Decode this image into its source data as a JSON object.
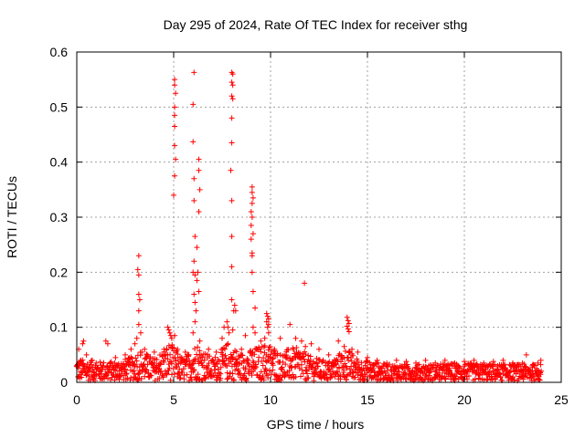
{
  "chart_data": {
    "type": "scatter",
    "title": "Day 295 of 2024, Rate Of TEC Index for receiver sthg",
    "xlabel": "GPS time / hours",
    "ylabel": "ROTI / TECUs",
    "xlim": [
      0,
      25
    ],
    "ylim": [
      0,
      0.6
    ],
    "xticks": [
      0,
      5,
      10,
      15,
      20,
      25
    ],
    "xtick_labels": [
      "0",
      "5",
      "10",
      "15",
      "20",
      "25"
    ],
    "yticks": [
      0,
      0.1,
      0.2,
      0.3,
      0.4,
      0.5,
      0.6
    ],
    "ytick_labels": [
      "0",
      "0.1",
      "0.2",
      "0.3",
      "0.4",
      "0.5",
      "0.6"
    ],
    "grid": true,
    "marker": "+",
    "series": [
      {
        "name": "ROTI",
        "color": "#ff0000",
        "points": [
          [
            0.05,
            0.03
          ],
          [
            0.1,
            0.06
          ],
          [
            0.2,
            0.04
          ],
          [
            0.3,
            0.07
          ],
          [
            0.35,
            0.075
          ],
          [
            0.5,
            0.05
          ],
          [
            0.8,
            0.04
          ],
          [
            1.0,
            0.035
          ],
          [
            1.5,
            0.075
          ],
          [
            1.6,
            0.07
          ],
          [
            2.0,
            0.045
          ],
          [
            2.5,
            0.05
          ],
          [
            2.8,
            0.06
          ],
          [
            3.0,
            0.07
          ],
          [
            3.1,
            0.08
          ],
          [
            3.2,
            0.23
          ],
          [
            3.15,
            0.205
          ],
          [
            3.2,
            0.195
          ],
          [
            3.2,
            0.16
          ],
          [
            3.25,
            0.15
          ],
          [
            3.2,
            0.13
          ],
          [
            3.2,
            0.105
          ],
          [
            3.3,
            0.09
          ],
          [
            3.5,
            0.06
          ],
          [
            4.0,
            0.055
          ],
          [
            4.5,
            0.06
          ],
          [
            4.7,
            0.1
          ],
          [
            4.75,
            0.095
          ],
          [
            4.8,
            0.09
          ],
          [
            4.85,
            0.085
          ],
          [
            4.9,
            0.08
          ],
          [
            5.05,
            0.55
          ],
          [
            5.05,
            0.54
          ],
          [
            5.1,
            0.525
          ],
          [
            5.05,
            0.5
          ],
          [
            5.05,
            0.485
          ],
          [
            5.05,
            0.465
          ],
          [
            5.05,
            0.43
          ],
          [
            5.1,
            0.405
          ],
          [
            5.05,
            0.375
          ],
          [
            5.0,
            0.34
          ],
          [
            5.05,
            0.085
          ],
          [
            5.2,
            0.06
          ],
          [
            5.6,
            0.055
          ],
          [
            6.05,
            0.563
          ],
          [
            6.0,
            0.505
          ],
          [
            6.0,
            0.437
          ],
          [
            6.05,
            0.37
          ],
          [
            6.05,
            0.33
          ],
          [
            6.1,
            0.265
          ],
          [
            6.05,
            0.22
          ],
          [
            6.0,
            0.2
          ],
          [
            6.1,
            0.195
          ],
          [
            6.2,
            0.185
          ],
          [
            6.05,
            0.16
          ],
          [
            6.1,
            0.145
          ],
          [
            6.15,
            0.13
          ],
          [
            6.1,
            0.11
          ],
          [
            6.0,
            0.09
          ],
          [
            6.3,
            0.405
          ],
          [
            6.3,
            0.385
          ],
          [
            6.35,
            0.35
          ],
          [
            6.3,
            0.31
          ],
          [
            6.2,
            0.245
          ],
          [
            6.25,
            0.2
          ],
          [
            6.3,
            0.165
          ],
          [
            6.35,
            0.075
          ],
          [
            6.8,
            0.06
          ],
          [
            7.2,
            0.055
          ],
          [
            7.5,
            0.08
          ],
          [
            7.6,
            0.1
          ],
          [
            7.75,
            0.11
          ],
          [
            7.8,
            0.1
          ],
          [
            7.85,
            0.09
          ],
          [
            8.0,
            0.563
          ],
          [
            8.05,
            0.56
          ],
          [
            8.0,
            0.545
          ],
          [
            8.05,
            0.54
          ],
          [
            8.0,
            0.52
          ],
          [
            8.05,
            0.515
          ],
          [
            8.0,
            0.48
          ],
          [
            8.0,
            0.435
          ],
          [
            7.95,
            0.385
          ],
          [
            8.0,
            0.33
          ],
          [
            8.0,
            0.265
          ],
          [
            8.0,
            0.21
          ],
          [
            8.0,
            0.15
          ],
          [
            8.15,
            0.14
          ],
          [
            8.1,
            0.13
          ],
          [
            8.2,
            0.13
          ],
          [
            8.05,
            0.095
          ],
          [
            8.5,
            0.06
          ],
          [
            8.7,
            0.085
          ],
          [
            9.05,
            0.355
          ],
          [
            9.05,
            0.345
          ],
          [
            9.1,
            0.335
          ],
          [
            9.05,
            0.325
          ],
          [
            9.0,
            0.31
          ],
          [
            9.05,
            0.3
          ],
          [
            9.0,
            0.285
          ],
          [
            9.1,
            0.27
          ],
          [
            9.0,
            0.26
          ],
          [
            9.05,
            0.235
          ],
          [
            9.05,
            0.23
          ],
          [
            9.05,
            0.2
          ],
          [
            9.1,
            0.165
          ],
          [
            9.2,
            0.135
          ],
          [
            9.1,
            0.1
          ],
          [
            9.2,
            0.09
          ],
          [
            9.8,
            0.125
          ],
          [
            9.85,
            0.12
          ],
          [
            9.9,
            0.115
          ],
          [
            9.8,
            0.11
          ],
          [
            9.9,
            0.105
          ],
          [
            9.85,
            0.1
          ],
          [
            9.9,
            0.09
          ],
          [
            9.7,
            0.08
          ],
          [
            9.5,
            0.075
          ],
          [
            10.2,
            0.06
          ],
          [
            10.5,
            0.08
          ],
          [
            11.0,
            0.105
          ],
          [
            11.3,
            0.08
          ],
          [
            11.6,
            0.075
          ],
          [
            11.75,
            0.18
          ],
          [
            11.8,
            0.065
          ],
          [
            12.1,
            0.07
          ],
          [
            12.5,
            0.06
          ],
          [
            13.0,
            0.05
          ],
          [
            13.5,
            0.075
          ],
          [
            13.8,
            0.065
          ],
          [
            13.95,
            0.118
          ],
          [
            14.0,
            0.112
          ],
          [
            14.05,
            0.107
          ],
          [
            13.95,
            0.102
          ],
          [
            14.0,
            0.097
          ],
          [
            14.05,
            0.092
          ],
          [
            14.2,
            0.06
          ],
          [
            14.5,
            0.055
          ],
          [
            15.0,
            0.045
          ],
          [
            15.5,
            0.04
          ],
          [
            16.0,
            0.035
          ],
          [
            16.5,
            0.04
          ],
          [
            17.0,
            0.038
          ],
          [
            17.5,
            0.035
          ],
          [
            18.0,
            0.04
          ],
          [
            18.5,
            0.035
          ],
          [
            19.0,
            0.04
          ],
          [
            19.5,
            0.035
          ],
          [
            20.0,
            0.038
          ],
          [
            20.5,
            0.04
          ],
          [
            21.0,
            0.035
          ],
          [
            21.5,
            0.038
          ],
          [
            22.0,
            0.04
          ],
          [
            22.5,
            0.035
          ],
          [
            23.0,
            0.035
          ],
          [
            23.2,
            0.05
          ],
          [
            23.5,
            0.03
          ],
          [
            23.8,
            0.035
          ],
          [
            23.95,
            0.04
          ]
        ],
        "dense_band": [
          [
            0,
            0.04
          ],
          [
            1,
            0.035
          ],
          [
            2,
            0.035
          ],
          [
            3,
            0.045
          ],
          [
            3.2,
            0.06
          ],
          [
            4,
            0.04
          ],
          [
            4.8,
            0.07
          ],
          [
            5.5,
            0.04
          ],
          [
            6.2,
            0.07
          ],
          [
            7,
            0.04
          ],
          [
            7.8,
            0.07
          ],
          [
            8.5,
            0.05
          ],
          [
            9.2,
            0.06
          ],
          [
            9.9,
            0.07
          ],
          [
            10.5,
            0.05
          ],
          [
            11.0,
            0.06
          ],
          [
            11.5,
            0.06
          ],
          [
            12.0,
            0.045
          ],
          [
            13.0,
            0.035
          ],
          [
            13.9,
            0.06
          ],
          [
            14.5,
            0.04
          ],
          [
            16,
            0.03
          ],
          [
            18,
            0.03
          ],
          [
            20,
            0.032
          ],
          [
            22,
            0.03
          ],
          [
            24,
            0.03
          ]
        ]
      }
    ]
  }
}
